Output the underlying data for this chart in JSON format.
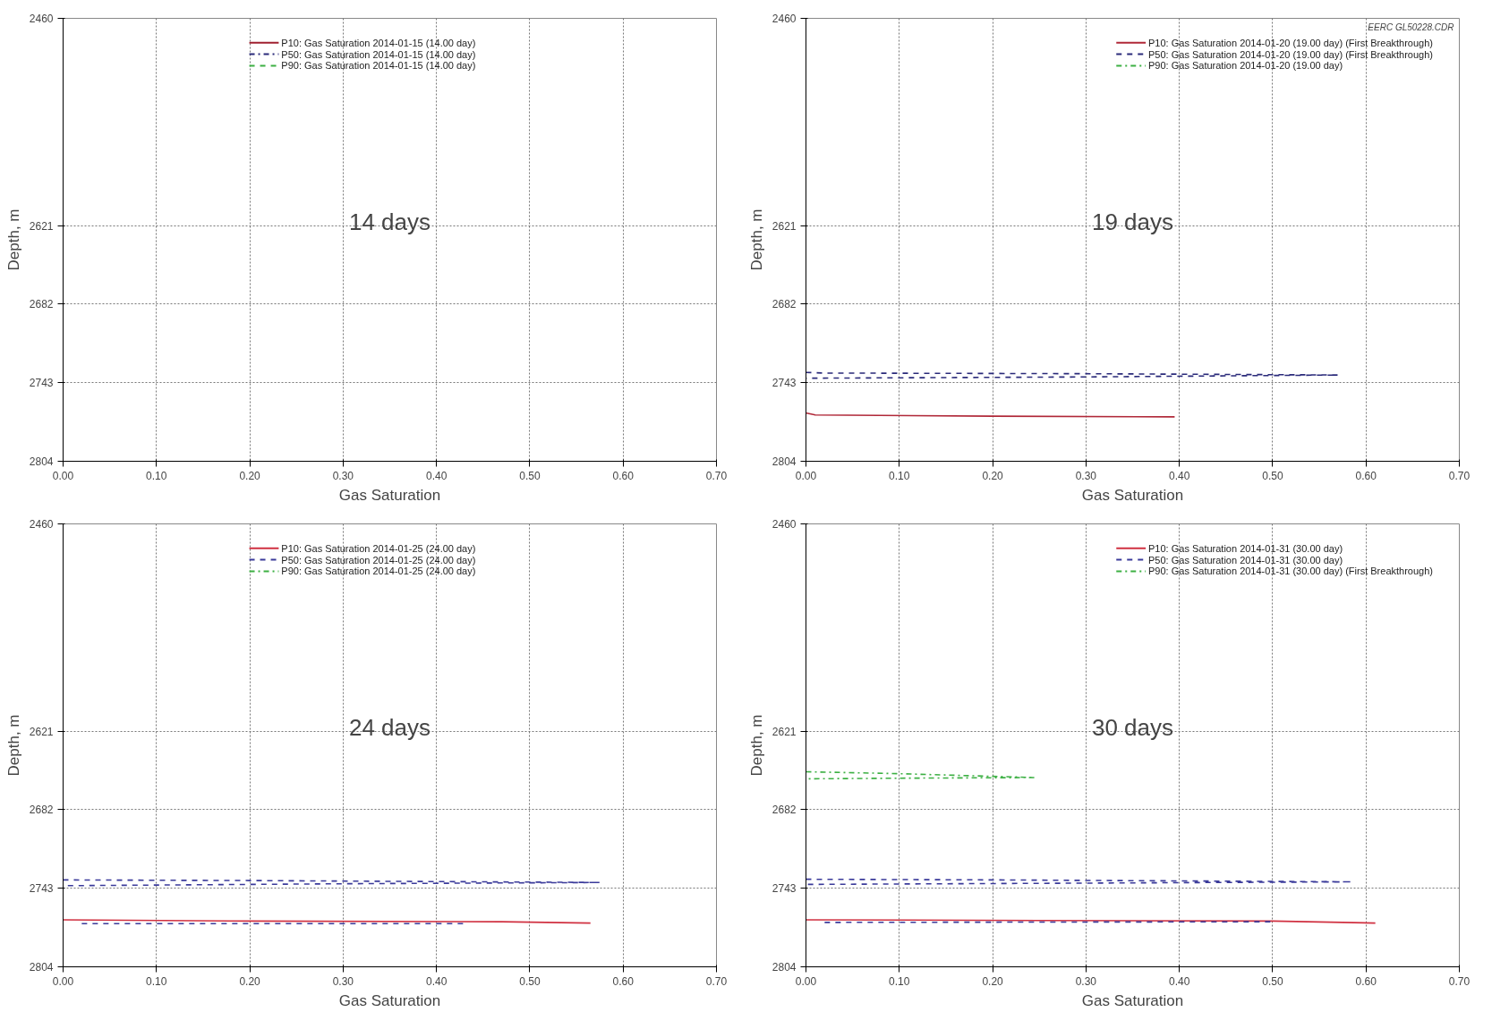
{
  "chart_data": [
    {
      "type": "line",
      "xlabel": "Gas Saturation",
      "ylabel": "Depth, m",
      "categories": [
        "0.00",
        "0.10",
        "0.20",
        "0.30",
        "0.40",
        "0.50",
        "0.60",
        "0.70"
      ],
      "ylim": [
        2804,
        2460
      ],
      "yticks": [
        2460,
        2621,
        2682,
        2743,
        2804
      ],
      "grid": true,
      "legend": "top",
      "annotations": [
        "14 days"
      ],
      "series": [
        {
          "name": "P10: Gas Saturation 2014-01-15 (14.00 day)",
          "color": "#a02030",
          "line_style": "solid",
          "values": [
            null,
            null,
            null,
            null,
            null,
            null,
            null,
            null
          ]
        },
        {
          "name": "P50: Gas Saturation 2014-01-15 (14.00 day)",
          "color": "#2a2a7a",
          "line_style": "dashdot",
          "values": [
            null,
            null,
            null,
            null,
            null,
            null,
            null,
            null
          ]
        },
        {
          "name": "P90: Gas Saturation 2014-01-15 (14.00 day)",
          "color": "#3cb043",
          "line_style": "dashed",
          "values": [
            null,
            null,
            null,
            null,
            null,
            null,
            null,
            null
          ]
        }
      ]
    },
    {
      "type": "line",
      "xlabel": "Gas Saturation",
      "ylabel": "Depth, m",
      "xlim": [
        0,
        0.7
      ],
      "ylim": [
        2804,
        2460
      ],
      "xticks": [
        {
          "value": 0,
          "label": "0.00"
        },
        {
          "value": 0.1,
          "label": "0.10"
        },
        {
          "value": 0.2,
          "label": "0.20"
        },
        {
          "value": 0.3,
          "label": "0.30"
        },
        {
          "value": 0.4,
          "label": "0.40"
        },
        {
          "value": 0.5,
          "label": "0.50"
        },
        {
          "value": 0.6,
          "label": "0.60"
        },
        {
          "value": 0.7,
          "label": "0.70"
        }
      ],
      "yticks": [
        2460,
        2621,
        2682,
        2743,
        2804
      ],
      "grid": true,
      "legend": "top right",
      "annotations": [
        "19 days",
        "EERC GL50228.CDR"
      ],
      "series": [
        {
          "name": "P10: Gas Saturation 2014-01-20 (19.00 day) (First Breakthrough)",
          "color": "#b02838",
          "line_style": "solid",
          "x": [
            0,
            0.01,
            0.2,
            0.395
          ],
          "values": [
            2766.5,
            2768,
            2769,
            2769.5
          ]
        },
        {
          "name": "P50: Gas Saturation 2014-01-20 (19.00 day) (First Breakthrough)",
          "color": "#2a2a7a",
          "line_style": "dashed",
          "x": [
            0.0,
            0.02,
            0.3,
            0.57,
            0.3,
            0.0
          ],
          "values": [
            2735,
            2735.5,
            2736,
            2737,
            2738.5,
            2739.5
          ]
        },
        {
          "name": "P90: Gas Saturation 2014-01-20 (19.00 day)",
          "color": "#3cb043",
          "line_style": "dashdot"
        }
      ]
    },
    {
      "type": "line",
      "xlabel": "Gas Saturation",
      "ylabel": "Depth, m",
      "xlim": [
        0,
        0.7
      ],
      "ylim": [
        2804,
        2460
      ],
      "xticks": [
        {
          "value": 0,
          "label": "0.00"
        },
        {
          "value": 0.1,
          "label": "0.10"
        },
        {
          "value": 0.2,
          "label": "0.20"
        },
        {
          "value": 0.3,
          "label": "0.30"
        },
        {
          "value": 0.4,
          "label": "0.40"
        },
        {
          "value": 0.5,
          "label": "0.50"
        },
        {
          "value": 0.6,
          "label": "0.60"
        },
        {
          "value": 0.7,
          "label": "0.70"
        }
      ],
      "yticks": [
        2460,
        2621,
        2682,
        2743,
        2804
      ],
      "grid": true,
      "legend": "top",
      "annotations": [
        "24 days"
      ],
      "series": [
        {
          "name": "P10: Gas Saturation 2014-01-25 (24.00 day)",
          "color": "#d03040",
          "line_style": "solid",
          "x": [
            0,
            0.2,
            0.47,
            0.565
          ],
          "values": [
            2767.5,
            2768.5,
            2769,
            2770
          ]
        },
        {
          "name": "P50: Gas Saturation 2014-01-25 (24.00 day)",
          "color": "#3a3a9a",
          "line_style": "dashed",
          "x": [
            0.0,
            0.2,
            0.575,
            0.3,
            0.0,
            null,
            0.02,
            0.43
          ],
          "values": [
            2736.5,
            2737,
            2738.5,
            2739.5,
            2741,
            null,
            2770.5,
            2770.5
          ]
        },
        {
          "name": "P90: Gas Saturation 2014-01-25 (24.00 day)",
          "color": "#3cb043",
          "line_style": "dashdot"
        }
      ]
    },
    {
      "type": "line",
      "xlabel": "Gas Saturation",
      "ylabel": "Depth, m",
      "xlim": [
        0,
        0.7
      ],
      "ylim": [
        2804,
        2460
      ],
      "xticks": [
        {
          "value": 0,
          "label": "0.00"
        },
        {
          "value": 0.1,
          "label": "0.10"
        },
        {
          "value": 0.2,
          "label": "0.20"
        },
        {
          "value": 0.3,
          "label": "0.30"
        },
        {
          "value": 0.4,
          "label": "0.40"
        },
        {
          "value": 0.5,
          "label": "0.50"
        },
        {
          "value": 0.6,
          "label": "0.60"
        },
        {
          "value": 0.7,
          "label": "0.70"
        }
      ],
      "yticks": [
        2460,
        2621,
        2682,
        2743,
        2804
      ],
      "grid": true,
      "legend": "top right",
      "annotations": [
        "30 days"
      ],
      "series": [
        {
          "name": "P10: Gas Saturation 2014-01-31 (30.00 day)",
          "color": "#d03040",
          "line_style": "solid",
          "x": [
            0,
            0.25,
            0.5,
            0.61
          ],
          "values": [
            2767.5,
            2768,
            2768.5,
            2770
          ]
        },
        {
          "name": "P50: Gas Saturation 2014-01-31 (30.00 day)",
          "color": "#3a3a9a",
          "line_style": "dashed",
          "x": [
            0.0,
            0.2,
            0.585,
            0.3,
            0.0,
            null,
            0.02,
            0.5
          ],
          "values": [
            2736,
            2736.5,
            2738,
            2739,
            2740,
            null,
            2769.5,
            2769
          ]
        },
        {
          "name": "P90: Gas Saturation 2014-01-31 (30.00 day) (First Breakthrough)",
          "color": "#3cb043",
          "line_style": "dashdot",
          "x": [
            0.0,
            0.1,
            0.245,
            0.1,
            0.0
          ],
          "values": [
            2652.5,
            2654,
            2657,
            2657.5,
            2658
          ]
        }
      ]
    }
  ]
}
